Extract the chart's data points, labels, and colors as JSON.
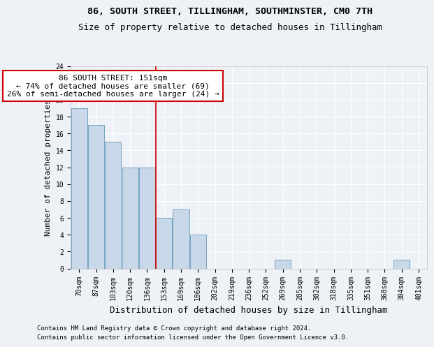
{
  "title1": "86, SOUTH STREET, TILLINGHAM, SOUTHMINSTER, CM0 7TH",
  "title2": "Size of property relative to detached houses in Tillingham",
  "xlabel": "Distribution of detached houses by size in Tillingham",
  "ylabel": "Number of detached properties",
  "categories": [
    "70sqm",
    "87sqm",
    "103sqm",
    "120sqm",
    "136sqm",
    "153sqm",
    "169sqm",
    "186sqm",
    "202sqm",
    "219sqm",
    "236sqm",
    "252sqm",
    "269sqm",
    "285sqm",
    "302sqm",
    "318sqm",
    "335sqm",
    "351sqm",
    "368sqm",
    "384sqm",
    "401sqm"
  ],
  "values": [
    19,
    17,
    15,
    12,
    12,
    6,
    7,
    4,
    0,
    0,
    0,
    0,
    1,
    0,
    0,
    0,
    0,
    0,
    0,
    1,
    0
  ],
  "bar_color": "#c8d8e8",
  "bar_edgecolor": "#6699bb",
  "redline_index": 4.5,
  "annotation_line1": "86 SOUTH STREET: 151sqm",
  "annotation_line2": "← 74% of detached houses are smaller (69)",
  "annotation_line3": "26% of semi-detached houses are larger (24) →",
  "annotation_box_color": "#ffffff",
  "annotation_box_edgecolor": "#cc0000",
  "redline_color": "#cc0000",
  "ylim": [
    0,
    24
  ],
  "yticks": [
    0,
    2,
    4,
    6,
    8,
    10,
    12,
    14,
    16,
    18,
    20,
    22,
    24
  ],
  "footer1": "Contains HM Land Registry data © Crown copyright and database right 2024.",
  "footer2": "Contains public sector information licensed under the Open Government Licence v3.0.",
  "background_color": "#eef2f7",
  "grid_color": "#ffffff",
  "title1_fontsize": 9.5,
  "title2_fontsize": 9,
  "xlabel_fontsize": 9,
  "ylabel_fontsize": 8,
  "tick_fontsize": 7,
  "annotation_fontsize": 8,
  "footer_fontsize": 6.5
}
